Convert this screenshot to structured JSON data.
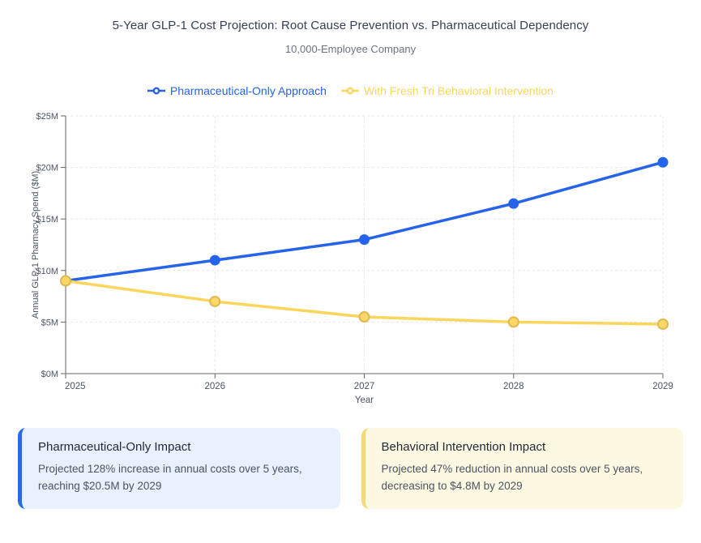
{
  "page": {
    "title": "5-Year GLP-1 Cost Projection: Root Cause Prevention vs. Pharmaceutical Dependency",
    "subtitle": "10,000-Employee Company"
  },
  "colors": {
    "grid": "#e4e7eb",
    "axis": "#666666",
    "tick_text": "#4b5563",
    "axis_label_text": "#4b5563"
  },
  "chart_data": {
    "type": "line",
    "title": "5-Year GLP-1 Cost Projection: Root Cause Prevention vs. Pharmaceutical Dependency",
    "subtitle": "10,000-Employee Company",
    "x": [
      "2025",
      "2026",
      "2027",
      "2028",
      "2029"
    ],
    "xlabel": "Year",
    "ylabel": "Annual GLP-1 Pharmacy Spend ($M)",
    "ylim": [
      0,
      25
    ],
    "yticks": [
      0,
      5,
      10,
      15,
      20,
      25
    ],
    "ytick_labels": [
      "$0M",
      "$5M",
      "$10M",
      "$15M",
      "$20M",
      "$25M"
    ],
    "grid": true,
    "legend_position": "top",
    "series": [
      {
        "name": "Pharmaceutical-Only Approach",
        "color": "#2563eb",
        "values": [
          9.0,
          11.0,
          13.0,
          16.5,
          20.5
        ],
        "dot_fill": "#2563eb",
        "dot_stroke": "",
        "dot_radius": 6.5,
        "line_width": 3.5
      },
      {
        "name": "With Fresh Tri Behavioral Intervention",
        "color": "#fbd65d",
        "values": [
          9.0,
          7.0,
          5.5,
          5.0,
          4.8
        ],
        "dot_fill": "#fad768",
        "dot_stroke": "#e2b84d",
        "dot_radius": 6,
        "line_width": 3.5
      }
    ]
  },
  "cards": [
    {
      "title": "Pharmaceutical-Only Impact",
      "body": "Projected 128% increase in annual costs over 5 years, reaching $20.5M by 2029",
      "accent": "#2b6be0",
      "bg": "#e8f1fd"
    },
    {
      "title": "Behavioral Intervention Impact",
      "body": "Projected 47% reduction in annual costs over 5 years, decreasing to $4.8M by 2029",
      "accent": "#f6d97a",
      "bg": "#fdf8e2"
    }
  ]
}
